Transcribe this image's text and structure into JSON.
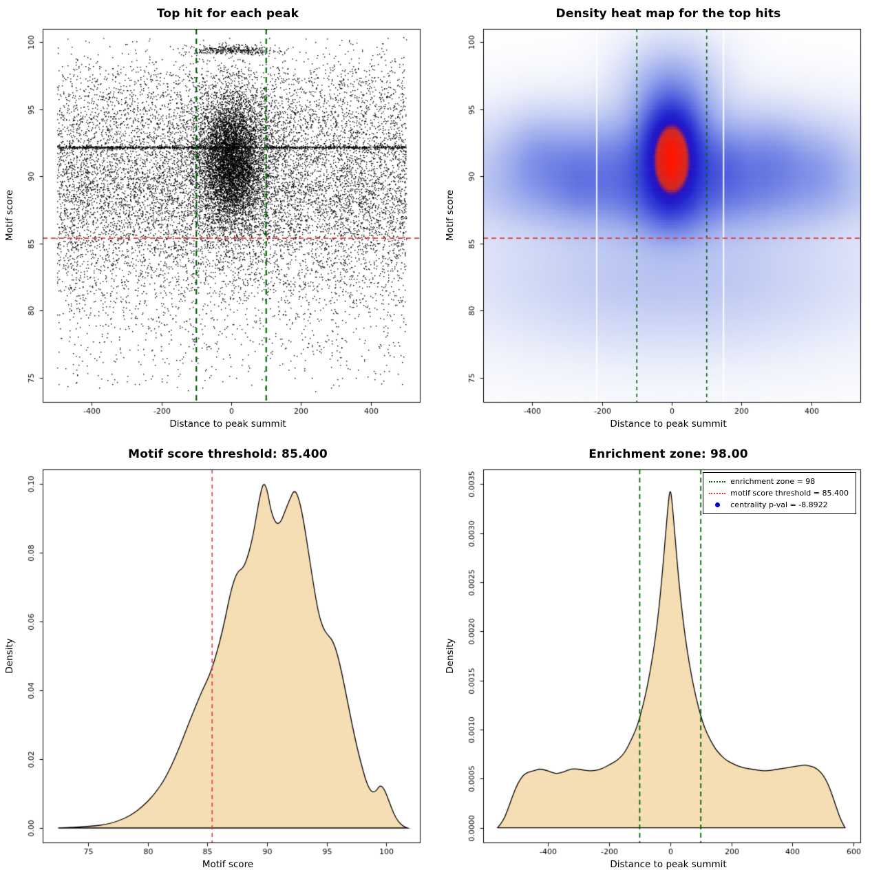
{
  "page": {
    "background": "#ffffff",
    "text_color": "#000000"
  },
  "chart_data": [
    {
      "type": "scatter",
      "title": "Top hit for each peak",
      "xlabel": "Distance to peak summit",
      "ylabel": "Motif score",
      "xlim": [
        -540,
        540
      ],
      "ylim": [
        73.2,
        101.0
      ],
      "xticks": [
        -400,
        -200,
        0,
        200,
        400
      ],
      "xtick_labels": [
        "-400",
        "-200",
        "0",
        "200",
        "400"
      ],
      "yticks": [
        75,
        80,
        85,
        90,
        95,
        100
      ],
      "ytick_labels": [
        "75",
        "80",
        "85",
        "90",
        "95",
        "100"
      ],
      "point_color": "#000000",
      "seed": 42,
      "point_clusters": [
        {
          "n": 10000,
          "x": {
            "t": "u",
            "a": -500,
            "b": 500
          },
          "y": {
            "t": "n",
            "m": 89.3,
            "s": 4.0,
            "a": 74,
            "b": 100.4
          }
        },
        {
          "n": 4500,
          "x": {
            "t": "n",
            "m": 0,
            "s": 60,
            "a": -500,
            "b": 500
          },
          "y": {
            "t": "n",
            "m": 91.3,
            "s": 2.7,
            "a": 74,
            "b": 100.4
          }
        },
        {
          "n": 2500,
          "x": {
            "t": "n",
            "m": 0,
            "s": 32,
            "a": -500,
            "b": 500
          },
          "y": {
            "t": "n",
            "m": 91.0,
            "s": 2.0,
            "a": 74,
            "b": 100.4
          }
        },
        {
          "n": 1200,
          "x": {
            "t": "u",
            "a": -500,
            "b": 500
          },
          "y": {
            "t": "n",
            "m": 92.2,
            "s": 0.05,
            "a": 91.9,
            "b": 92.5
          }
        },
        {
          "n": 350,
          "x": {
            "t": "n",
            "m": 0,
            "s": 60,
            "a": -300,
            "b": 300
          },
          "y": {
            "t": "n",
            "m": 99.45,
            "s": 0.2,
            "a": 99.1,
            "b": 99.9
          }
        },
        {
          "n": 1200,
          "x": {
            "t": "u",
            "a": -500,
            "b": 500
          },
          "y": {
            "t": "n",
            "m": 95.6,
            "s": 2.0,
            "a": 90,
            "b": 100.3
          }
        },
        {
          "n": 900,
          "x": {
            "t": "u",
            "a": -500,
            "b": 500
          },
          "y": {
            "t": "n",
            "m": 81.5,
            "s": 3.0,
            "a": 74,
            "b": 86.5
          }
        },
        {
          "n": 130,
          "x": {
            "t": "u",
            "a": -500,
            "b": 500
          },
          "y": {
            "t": "u",
            "a": 74.2,
            "b": 78
          }
        }
      ],
      "vlines": [
        {
          "x": -100,
          "color": "#006400",
          "width": 2.2,
          "dash": [
            8,
            6
          ]
        },
        {
          "x": 100,
          "color": "#006400",
          "width": 2.2,
          "dash": [
            8,
            6
          ]
        }
      ],
      "hlines": [
        {
          "y": 85.4,
          "color": "#e93434",
          "width": 1.6,
          "dash": [
            7,
            5
          ]
        }
      ]
    },
    {
      "type": "heatmap",
      "title": "Density heat map for the top hits",
      "xlabel": "Distance to peak summit",
      "ylabel": "Motif score",
      "xlim": [
        -540,
        540
      ],
      "ylim": [
        73.2,
        101.0
      ],
      "xticks": [
        -400,
        -200,
        0,
        200,
        400
      ],
      "xtick_labels": [
        "-400",
        "-200",
        "0",
        "200",
        "400"
      ],
      "yticks": [
        75,
        80,
        85,
        90,
        95,
        100
      ],
      "ytick_labels": [
        "75",
        "80",
        "85",
        "90",
        "95",
        "100"
      ],
      "gamma": 0.45,
      "colormap": [
        [
          0,
          "#ffffff"
        ],
        [
          0.1,
          "#eef1fb"
        ],
        [
          0.25,
          "#c9d2f4"
        ],
        [
          0.4,
          "#9aa9ec"
        ],
        [
          0.55,
          "#6374e2"
        ],
        [
          0.68,
          "#3642d6"
        ],
        [
          0.78,
          "#1f1fcd"
        ],
        [
          0.85,
          "#2a10c0"
        ],
        [
          0.895,
          "#cc2a2a"
        ],
        [
          1,
          "#ff1500"
        ]
      ],
      "components": [
        {
          "mx": 0,
          "sx": 300,
          "my": 90.6,
          "sy": 2.4,
          "w": 0.4
        },
        {
          "mx": 0,
          "sx": 320,
          "my": 88.2,
          "sy": 1.6,
          "w": 0.12
        },
        {
          "mx": 0,
          "sx": 58,
          "my": 92.0,
          "sy": 2.6,
          "w": 0.6
        },
        {
          "mx": 0,
          "sx": 42,
          "my": 90.2,
          "sy": 1.7,
          "w": 0.35
        },
        {
          "mx": 0,
          "sx": 46,
          "my": 93.1,
          "sy": 1.6,
          "w": 0.3
        },
        {
          "mx": 0,
          "sx": 330,
          "my": 82.5,
          "sy": 3.2,
          "w": 0.1
        },
        {
          "mx": -380,
          "sx": 60,
          "my": 91.3,
          "sy": 2.0,
          "w": 0.1
        },
        {
          "mx": -265,
          "sx": 45,
          "my": 89.8,
          "sy": 1.7,
          "w": 0.07
        },
        {
          "mx": 300,
          "sx": 55,
          "my": 91.2,
          "sy": 1.9,
          "w": 0.08
        },
        {
          "mx": 430,
          "sx": 48,
          "my": 90.4,
          "sy": 1.8,
          "w": 0.07
        },
        {
          "mx": 150,
          "sx": 42,
          "my": 90.6,
          "sy": 1.7,
          "w": 0.07
        },
        {
          "mx": 0,
          "sx": 85,
          "my": 96.3,
          "sy": 2.2,
          "w": 0.18
        },
        {
          "mx": 0,
          "sx": 70,
          "my": 87.2,
          "sy": 1.6,
          "w": 0.15
        }
      ],
      "gap_lines_x": [
        -215,
        148
      ],
      "vlines": [
        {
          "x": -100,
          "color": "#006400",
          "width": 1.6,
          "dash": [
            5,
            5
          ]
        },
        {
          "x": 100,
          "color": "#006400",
          "width": 1.6,
          "dash": [
            5,
            5
          ]
        }
      ],
      "hlines": [
        {
          "y": 85.4,
          "color": "#e93434",
          "width": 1.6,
          "dash": [
            7,
            5
          ]
        }
      ]
    },
    {
      "type": "area",
      "title": "Motif score threshold: 85.400",
      "xlabel": "Motif score",
      "ylabel": "Density",
      "xlim": [
        71.2,
        102.8
      ],
      "ylim": [
        -0.0042,
        0.1042
      ],
      "xticks": [
        75,
        80,
        85,
        90,
        95,
        100
      ],
      "xtick_labels": [
        "75",
        "80",
        "85",
        "90",
        "95",
        "100"
      ],
      "yticks": [
        0,
        0.02,
        0.04,
        0.06,
        0.08,
        0.1
      ],
      "ytick_labels": [
        "0.00",
        "0.02",
        "0.04",
        "0.06",
        "0.08",
        "0.10"
      ],
      "fill": "#f5deb3",
      "line_color": "#000000",
      "curve": [
        [
          72.5,
          0
        ],
        [
          74,
          0.0002
        ],
        [
          75.5,
          0.0006
        ],
        [
          76.5,
          0.001
        ],
        [
          77.5,
          0.002
        ],
        [
          78.5,
          0.0035
        ],
        [
          79.5,
          0.006
        ],
        [
          80.5,
          0.0095
        ],
        [
          81.5,
          0.0145
        ],
        [
          82.5,
          0.022
        ],
        [
          83.5,
          0.031
        ],
        [
          84.5,
          0.0395
        ],
        [
          85,
          0.043
        ],
        [
          85.4,
          0.0465
        ],
        [
          86,
          0.0535
        ],
        [
          86.5,
          0.061
        ],
        [
          87,
          0.0695
        ],
        [
          87.5,
          0.0745
        ],
        [
          88,
          0.0755
        ],
        [
          88.4,
          0.079
        ],
        [
          88.8,
          0.0845
        ],
        [
          89.1,
          0.0905
        ],
        [
          89.4,
          0.0965
        ],
        [
          89.7,
          0.1005
        ],
        [
          90,
          0.0985
        ],
        [
          90.3,
          0.0925
        ],
        [
          90.7,
          0.0885
        ],
        [
          91.1,
          0.0885
        ],
        [
          91.5,
          0.092
        ],
        [
          91.9,
          0.0955
        ],
        [
          92.3,
          0.0985
        ],
        [
          92.7,
          0.0955
        ],
        [
          93.1,
          0.0885
        ],
        [
          93.5,
          0.0795
        ],
        [
          93.9,
          0.0705
        ],
        [
          94.3,
          0.0625
        ],
        [
          94.7,
          0.058
        ],
        [
          95.1,
          0.056
        ],
        [
          95.5,
          0.0545
        ],
        [
          95.9,
          0.0505
        ],
        [
          96.3,
          0.0445
        ],
        [
          96.7,
          0.0375
        ],
        [
          97.1,
          0.0305
        ],
        [
          97.5,
          0.024
        ],
        [
          97.9,
          0.0185
        ],
        [
          98.3,
          0.0135
        ],
        [
          98.7,
          0.0105
        ],
        [
          99.1,
          0.0105
        ],
        [
          99.45,
          0.0125
        ],
        [
          99.8,
          0.0115
        ],
        [
          100.2,
          0.008
        ],
        [
          100.6,
          0.0042
        ],
        [
          101,
          0.0018
        ],
        [
          101.4,
          0.0005
        ],
        [
          101.8,
          0
        ]
      ],
      "vlines": [
        {
          "x": 85.4,
          "color": "#e93434",
          "width": 1.6,
          "dash": [
            6,
            5
          ]
        }
      ],
      "hlines": []
    },
    {
      "type": "area",
      "title": "Enrichment zone: 98.00",
      "xlabel": "Distance to peak summit",
      "ylabel": "Density",
      "xlim": [
        -612,
        622
      ],
      "ylim": [
        -0.00015,
        0.00365
      ],
      "xticks": [
        -400,
        -200,
        0,
        200,
        400,
        600
      ],
      "xtick_labels": [
        "-400",
        "-200",
        "0",
        "200",
        "400",
        "600"
      ],
      "yticks": [
        0,
        0.0005,
        0.001,
        0.0015,
        0.002,
        0.0025,
        0.003,
        0.0035
      ],
      "ytick_labels": [
        "0.0000",
        "0.0005",
        "0.0010",
        "0.0015",
        "0.0020",
        "0.0025",
        "0.0030",
        "0.0035"
      ],
      "fill": "#f5deb3",
      "line_color": "#000000",
      "curve": [
        [
          -565,
          0
        ],
        [
          -548,
          6e-05
        ],
        [
          -532,
          0.00018
        ],
        [
          -515,
          0.00033
        ],
        [
          -498,
          0.00046
        ],
        [
          -480,
          0.00054
        ],
        [
          -462,
          0.00057
        ],
        [
          -445,
          0.00058
        ],
        [
          -428,
          0.0006
        ],
        [
          -410,
          0.00059
        ],
        [
          -392,
          0.00057
        ],
        [
          -375,
          0.00055
        ],
        [
          -358,
          0.00056
        ],
        [
          -340,
          0.00058
        ],
        [
          -322,
          0.0006
        ],
        [
          -305,
          0.0006
        ],
        [
          -288,
          0.00059
        ],
        [
          -270,
          0.00058
        ],
        [
          -252,
          0.00058
        ],
        [
          -235,
          0.00059
        ],
        [
          -218,
          0.00061
        ],
        [
          -200,
          0.00064
        ],
        [
          -182,
          0.00067
        ],
        [
          -165,
          0.00071
        ],
        [
          -148,
          0.00077
        ],
        [
          -130,
          0.00088
        ],
        [
          -112,
          0.001
        ],
        [
          -100,
          0.00112
        ],
        [
          -88,
          0.00126
        ],
        [
          -75,
          0.00144
        ],
        [
          -62,
          0.00166
        ],
        [
          -50,
          0.0019
        ],
        [
          -38,
          0.0022
        ],
        [
          -28,
          0.00252
        ],
        [
          -18,
          0.00288
        ],
        [
          -10,
          0.00318
        ],
        [
          -4,
          0.00338
        ],
        [
          0,
          0.00344
        ],
        [
          4,
          0.00338
        ],
        [
          10,
          0.00318
        ],
        [
          18,
          0.00288
        ],
        [
          28,
          0.00252
        ],
        [
          38,
          0.00222
        ],
        [
          50,
          0.00192
        ],
        [
          62,
          0.00168
        ],
        [
          75,
          0.00146
        ],
        [
          88,
          0.00128
        ],
        [
          100,
          0.00114
        ],
        [
          112,
          0.00102
        ],
        [
          130,
          0.0009
        ],
        [
          148,
          0.0008
        ],
        [
          165,
          0.00074
        ],
        [
          182,
          0.00069
        ],
        [
          200,
          0.00066
        ],
        [
          220,
          0.00063
        ],
        [
          240,
          0.00061
        ],
        [
          260,
          0.0006
        ],
        [
          280,
          0.00059
        ],
        [
          300,
          0.00058
        ],
        [
          320,
          0.00058
        ],
        [
          340,
          0.00059
        ],
        [
          360,
          0.0006
        ],
        [
          380,
          0.00061
        ],
        [
          400,
          0.00062
        ],
        [
          420,
          0.00063
        ],
        [
          440,
          0.00064
        ],
        [
          458,
          0.00063
        ],
        [
          475,
          0.00061
        ],
        [
          492,
          0.00057
        ],
        [
          508,
          0.0005
        ],
        [
          525,
          0.00038
        ],
        [
          542,
          0.00022
        ],
        [
          558,
          8e-05
        ],
        [
          572,
          0
        ]
      ],
      "vlines": [
        {
          "x": -100,
          "color": "#006400",
          "width": 1.8,
          "dash": [
            7,
            5
          ]
        },
        {
          "x": 100,
          "color": "#006400",
          "width": 1.8,
          "dash": [
            7,
            5
          ]
        }
      ],
      "hlines": [],
      "legend": {
        "items": [
          {
            "label": "enrichment zone = 98",
            "marker": "dotted-line",
            "color": "#006400"
          },
          {
            "label": "motif score threshold = 85.400",
            "marker": "dotted-line",
            "color": "#ee3333"
          },
          {
            "label": "centrality p-val = -8.8922",
            "marker": "dot",
            "color": "#0000cc"
          }
        ]
      }
    }
  ]
}
